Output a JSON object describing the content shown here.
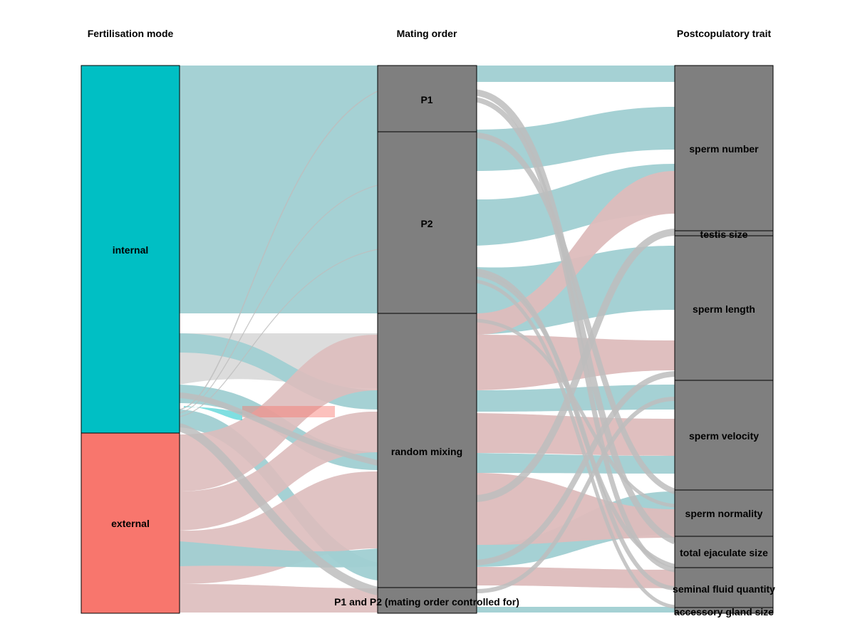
{
  "axes": [
    {
      "title": "Fertilisation mode"
    },
    {
      "title": "Mating order"
    },
    {
      "title": "Postcopulatory trait"
    }
  ],
  "colors": {
    "internal": "#00bfc4",
    "external": "#f8766d",
    "node_gray": "#7f7f7f",
    "flow_internal": "#a0cfd2",
    "flow_external": "#ddbcbc",
    "flow_gray": "#dcdcdc",
    "flow_threads": "#bdbdbd"
  },
  "chart_data": {
    "type": "alluvial",
    "nodes": {
      "fertilisation_mode": [
        {
          "name": "internal",
          "value": 67
        },
        {
          "name": "external",
          "value": 33
        }
      ],
      "mating_order": [
        {
          "name": "P1",
          "value": 12
        },
        {
          "name": "P2",
          "value": 33
        },
        {
          "name": "random mixing",
          "value": 50
        },
        {
          "name": "P1 and P2 (mating order controlled for)",
          "value": 5
        }
      ],
      "postcopulatory_trait": [
        {
          "name": "sperm number",
          "value": 30
        },
        {
          "name": "testis size",
          "value": 1
        },
        {
          "name": "sperm length",
          "value": 26
        },
        {
          "name": "sperm velocity",
          "value": 20
        },
        {
          "name": "sperm normality",
          "value": 8.5
        },
        {
          "name": "total ejaculate size",
          "value": 5.5
        },
        {
          "name": "seminal fluid quantity",
          "value": 7
        },
        {
          "name": "accessory gland size",
          "value": 1
        }
      ]
    },
    "flows_left": [
      {
        "from": "internal",
        "to": "P1",
        "value": 12
      },
      {
        "from": "internal",
        "to": "P2",
        "value": 33
      },
      {
        "from": "internal",
        "to": "random mixing",
        "value": 20
      },
      {
        "from": "internal",
        "to": "P1 and P2 (mating order controlled for)",
        "value": 2
      },
      {
        "from": "external",
        "to": "random mixing",
        "value": 30
      },
      {
        "from": "external",
        "to": "P1 and P2 (mating order controlled for)",
        "value": 3
      }
    ]
  }
}
